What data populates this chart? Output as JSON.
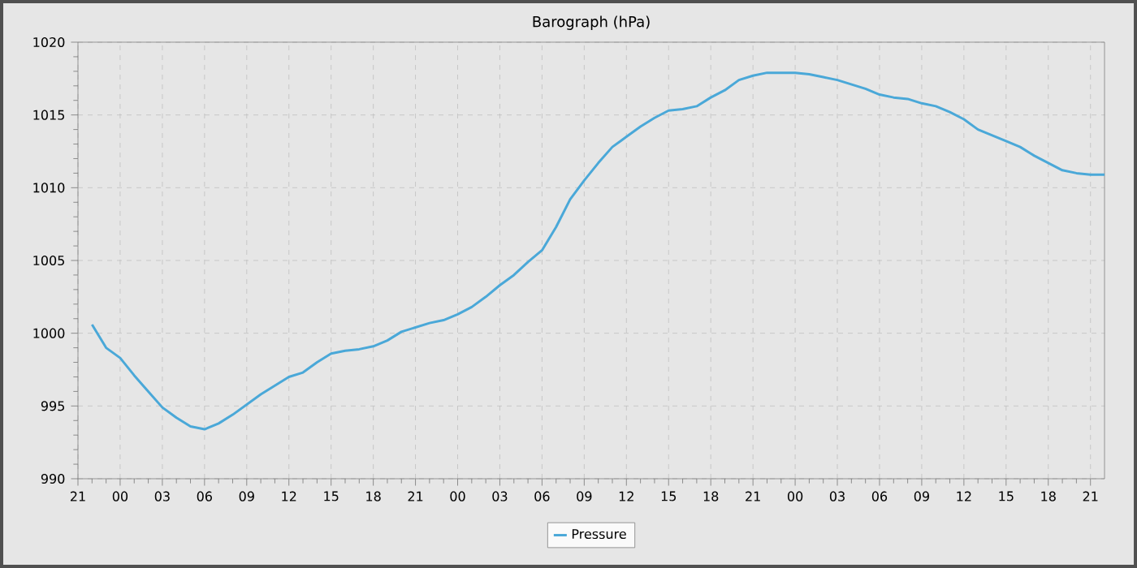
{
  "chart_data": {
    "type": "line",
    "title": "Barograph (hPa)",
    "categories": [
      "21",
      null,
      null,
      "00",
      null,
      null,
      "03",
      null,
      null,
      "06",
      null,
      null,
      "09",
      null,
      null,
      "12",
      null,
      null,
      "15",
      null,
      null,
      "18",
      null,
      null,
      "21",
      null,
      null,
      "00",
      null,
      null,
      "03",
      null,
      null,
      "06",
      null,
      null,
      "09",
      null,
      null,
      "12",
      null,
      null,
      "15",
      null,
      null,
      "18",
      null,
      null,
      "21",
      null,
      null,
      "00",
      null,
      null,
      "03",
      null,
      null,
      "06",
      null,
      null,
      "09",
      null,
      null,
      "12",
      null,
      null,
      "15",
      null,
      null,
      "18",
      null,
      null,
      "21",
      null
    ],
    "ylim": [
      990,
      1020
    ],
    "yticks": [
      990,
      995,
      1000,
      1005,
      1010,
      1015,
      1020
    ],
    "grid": true,
    "legend": "bottom",
    "series": [
      {
        "name": "Pressure",
        "color": "#4aa8d8",
        "values": [
          null,
          1000.6,
          999.0,
          998.3,
          997.1,
          996.0,
          994.9,
          994.2,
          993.6,
          993.4,
          993.8,
          994.4,
          995.1,
          995.8,
          996.4,
          997.0,
          997.3,
          998.0,
          998.6,
          998.8,
          998.9,
          999.1,
          999.5,
          1000.1,
          1000.4,
          1000.7,
          1000.9,
          1001.3,
          1001.8,
          1002.5,
          1003.3,
          1004.0,
          1004.9,
          1005.7,
          1007.3,
          1009.2,
          1010.5,
          1011.7,
          1012.8,
          1013.5,
          1014.2,
          1014.8,
          1015.3,
          1015.4,
          1015.6,
          1016.2,
          1016.7,
          1017.4,
          1017.7,
          1017.9,
          1017.9,
          1017.9,
          1017.8,
          1017.6,
          1017.4,
          1017.1,
          1016.8,
          1016.4,
          1016.2,
          1016.1,
          1015.8,
          1015.6,
          1015.2,
          1014.7,
          1014.0,
          1013.6,
          1013.2,
          1012.8,
          1012.2,
          1011.7,
          1011.2,
          1011.0,
          1010.9,
          1010.9
        ]
      }
    ]
  }
}
